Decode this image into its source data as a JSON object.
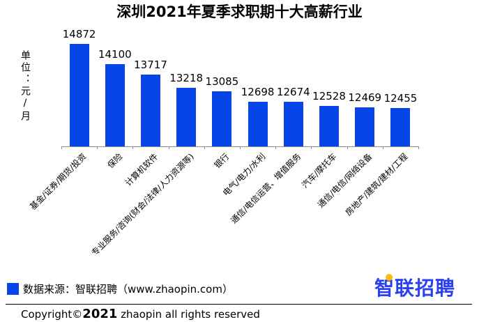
{
  "chart_data": {
    "type": "bar",
    "title": "深圳2021年夏季求职期十大高薪行业",
    "unit_label": "单位：元/月",
    "categories": [
      "基金/证券/期货/投资",
      "保险",
      "计算机软件",
      "专业服务/咨询(财会/法律/人力资源等)",
      "银行",
      "电气/电力/水利",
      "通信/电信运营、增值服务",
      "汽车/摩托车",
      "通信/电信/网络设备",
      "房地产/建筑/建材/工程"
    ],
    "values": [
      14872,
      14100,
      13717,
      13218,
      13085,
      12698,
      12674,
      12528,
      12469,
      12455
    ],
    "xlabel": "",
    "ylabel": "单位：元/月",
    "ylim": [
      11000,
      15000
    ],
    "grid": false,
    "value_labels": true,
    "legend_position": "bottom-left",
    "category_label_rotation": 45
  },
  "footer": {
    "source_label": "数据来源：智联招聘（www.zhaopin.com）",
    "logo_text": "智联招聘",
    "copyright_prefix": "Copyright©",
    "copyright_year": "2021",
    "copyright_suffix": " zhaopin all rights reserved"
  },
  "colors": {
    "bar": "#0845e8",
    "axis": "#8a8a8a",
    "logo_blue": "#2b40ee",
    "logo_dot_yellow": "#ffbb00",
    "text": "#000000"
  }
}
